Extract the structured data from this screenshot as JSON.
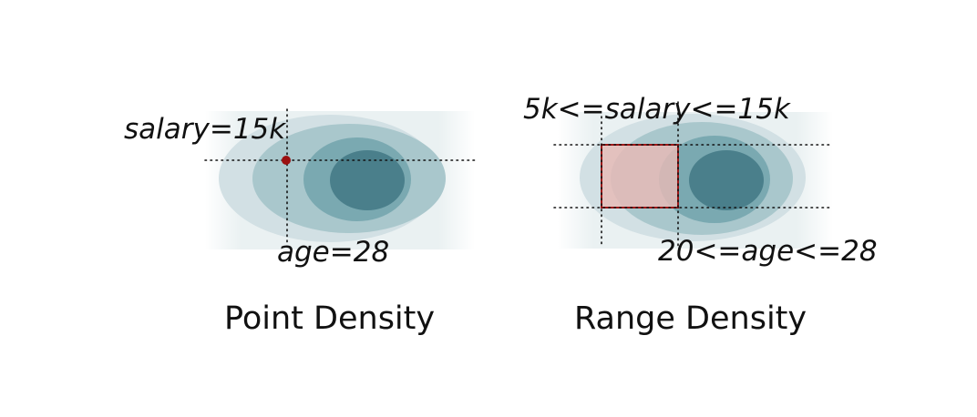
{
  "panels": [
    {
      "id": "point",
      "caption": "Point Density",
      "labels": {
        "salary": "salary=15k",
        "age": "age=28"
      }
    },
    {
      "id": "range",
      "caption": "Range Density",
      "labels": {
        "salary": "5k<=salary<=15k",
        "age": "20<=age<=28"
      }
    }
  ],
  "colors": {
    "density_levels": [
      "#eaf1f2",
      "#d2e0e4",
      "#a9c7cc",
      "#7aa9b1",
      "#4a7f8b"
    ],
    "point_marker": "#9b1010",
    "range_box_fill": "#e7bab6",
    "range_box_stroke": "#a01818",
    "guide_lines": "#111111"
  }
}
